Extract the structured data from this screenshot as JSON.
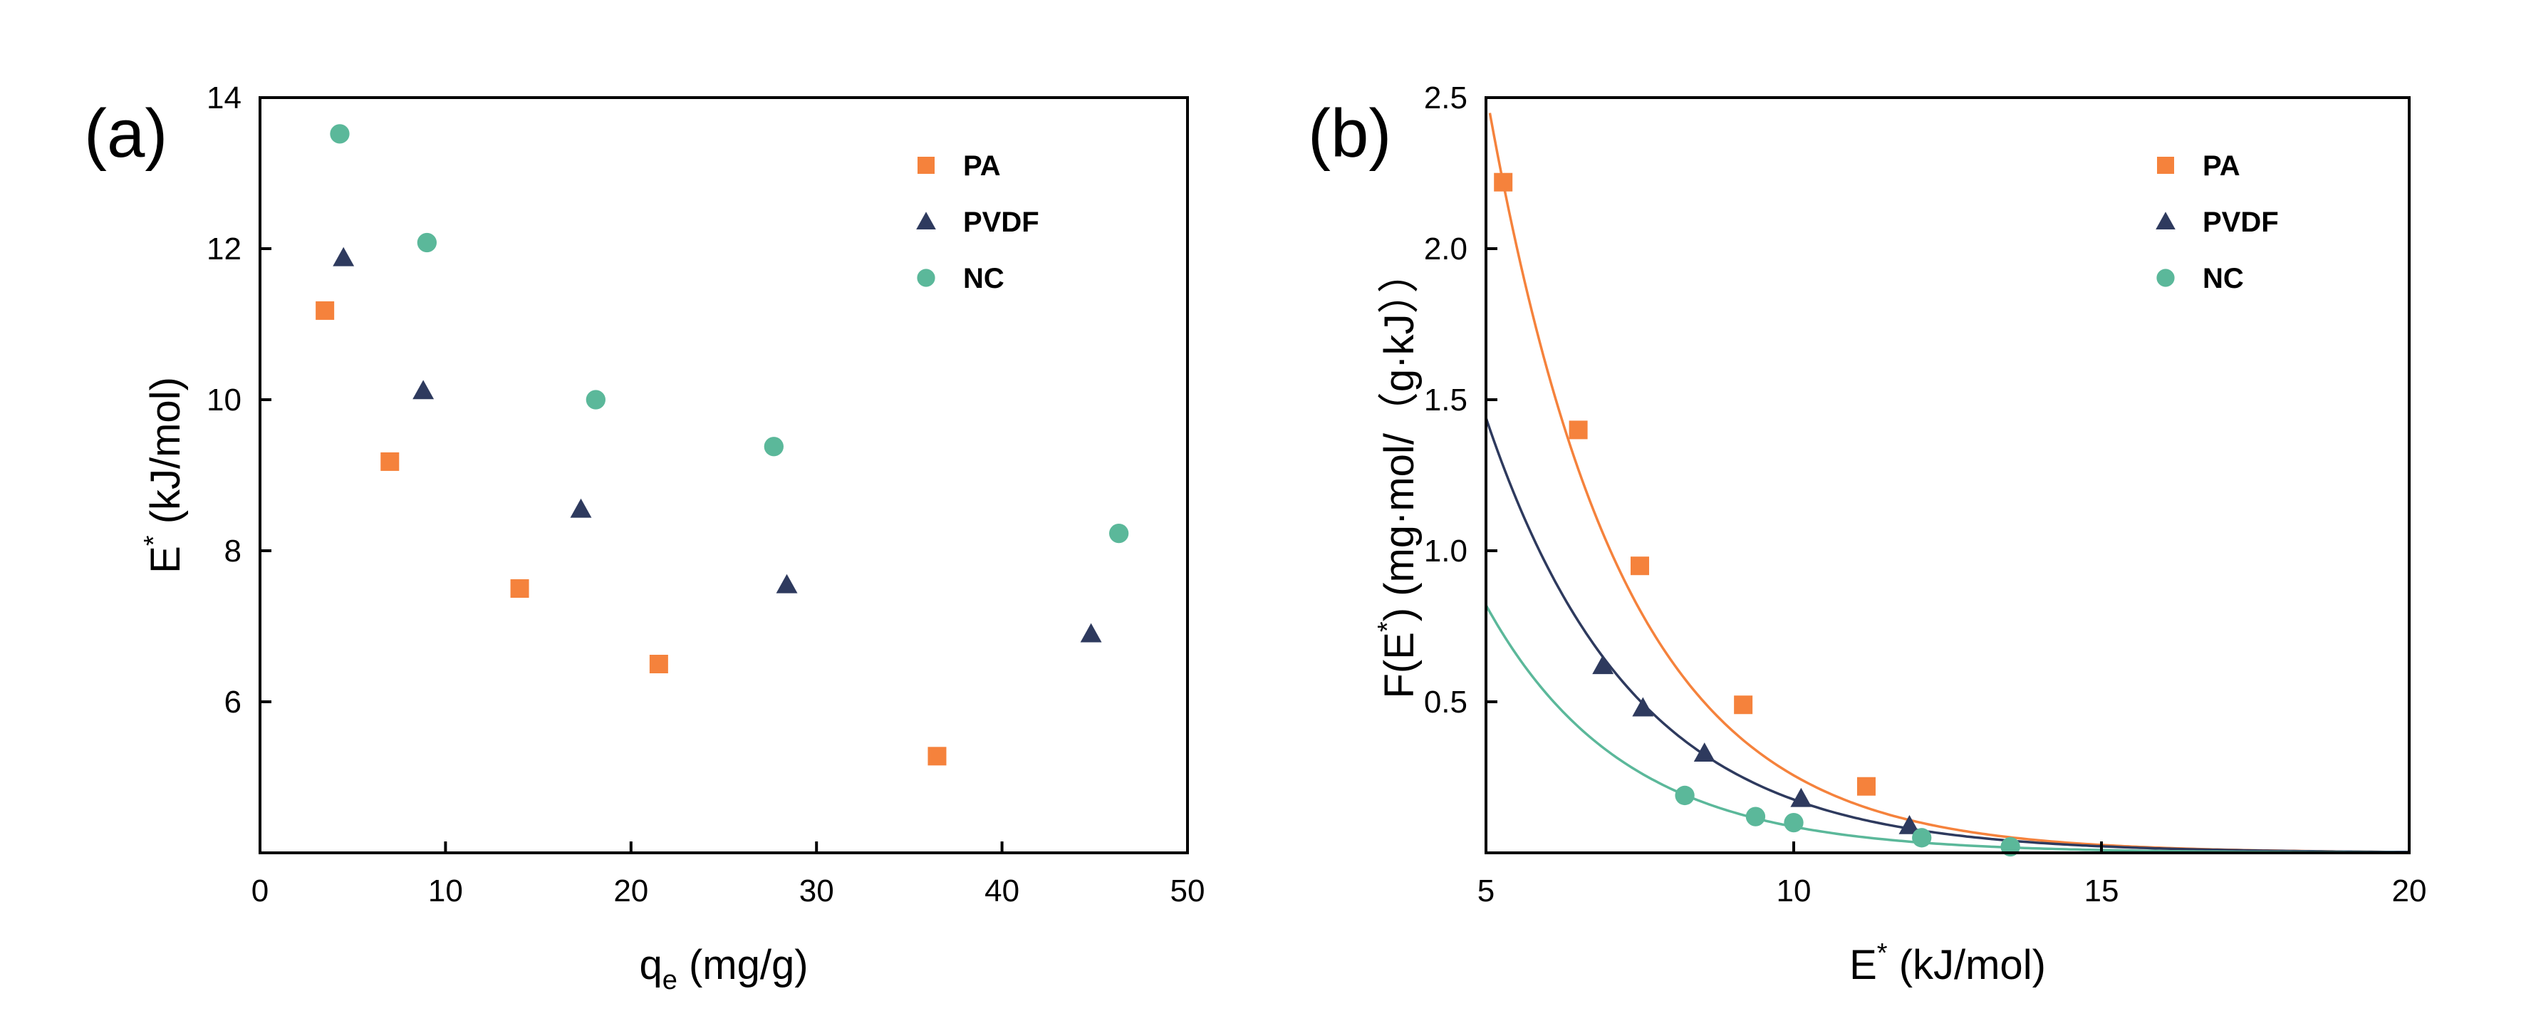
{
  "colors": {
    "PA": "#f5823c",
    "PVDF": "#2e3a5e",
    "NC": "#5bb89a",
    "axis": "#000000"
  },
  "chart_data": [
    {
      "id": "a",
      "type": "scatter",
      "panel_label": "(a)",
      "xlabel_main": "q",
      "xlabel_sub": "e",
      "xlabel_unit": " (mg/g)",
      "ylabel_main": "E",
      "ylabel_sup": "*",
      "ylabel_unit": " (kJ/mol)",
      "xlim": [
        0,
        50
      ],
      "ylim": [
        4,
        14
      ],
      "xticks": [
        0,
        10,
        20,
        30,
        40,
        50
      ],
      "yticks": [
        6,
        8,
        10,
        12,
        14
      ],
      "legend_position": "top-right",
      "series": [
        {
          "name": "PA",
          "marker": "square",
          "x": [
            3.5,
            7.0,
            14.0,
            21.5,
            36.5
          ],
          "y": [
            11.18,
            9.18,
            7.5,
            6.5,
            5.28
          ]
        },
        {
          "name": "PVDF",
          "marker": "triangle",
          "x": [
            4.5,
            8.8,
            17.3,
            28.4,
            44.8
          ],
          "y": [
            11.88,
            10.12,
            8.55,
            7.55,
            6.9
          ]
        },
        {
          "name": "NC",
          "marker": "circle",
          "x": [
            4.3,
            9.0,
            18.1,
            27.7,
            46.3
          ],
          "y": [
            13.52,
            12.08,
            10.0,
            9.38,
            8.23
          ]
        }
      ]
    },
    {
      "id": "b",
      "type": "scatter",
      "panel_label": "(b)",
      "xlabel_main": "E",
      "xlabel_sup": "*",
      "xlabel_unit": " (kJ/mol)",
      "ylabel_pre": "F(E",
      "ylabel_sup": "*",
      "ylabel_post": ") (mg·mol/（g·kJ））",
      "xlim": [
        5,
        20
      ],
      "ylim": [
        0,
        2.5
      ],
      "xticks": [
        5,
        10,
        15,
        20
      ],
      "yticks": [
        0.5,
        1.0,
        1.5,
        2.0,
        2.5
      ],
      "ytick_labels": [
        "0.5",
        "1.0",
        "1.5",
        "2.0",
        "2.5"
      ],
      "legend_position": "top-right",
      "series": [
        {
          "name": "PA",
          "marker": "square",
          "x": [
            5.28,
            6.5,
            7.5,
            9.18,
            11.18
          ],
          "y": [
            2.22,
            1.4,
            0.95,
            0.49,
            0.22
          ],
          "fit": {
            "a": 2.52,
            "b": 0.457
          }
        },
        {
          "name": "PVDF",
          "marker": "triangle",
          "x": [
            6.9,
            7.55,
            8.55,
            10.12,
            11.88
          ],
          "y": [
            0.62,
            0.48,
            0.33,
            0.18,
            0.09
          ],
          "fit": {
            "a": 1.44,
            "b": 0.42
          }
        },
        {
          "name": "NC",
          "marker": "circle",
          "x": [
            8.23,
            9.38,
            10.0,
            12.08,
            13.52
          ],
          "y": [
            0.19,
            0.12,
            0.1,
            0.05,
            0.02
          ],
          "fit": {
            "a": 0.82,
            "b": 0.45
          }
        }
      ]
    }
  ]
}
